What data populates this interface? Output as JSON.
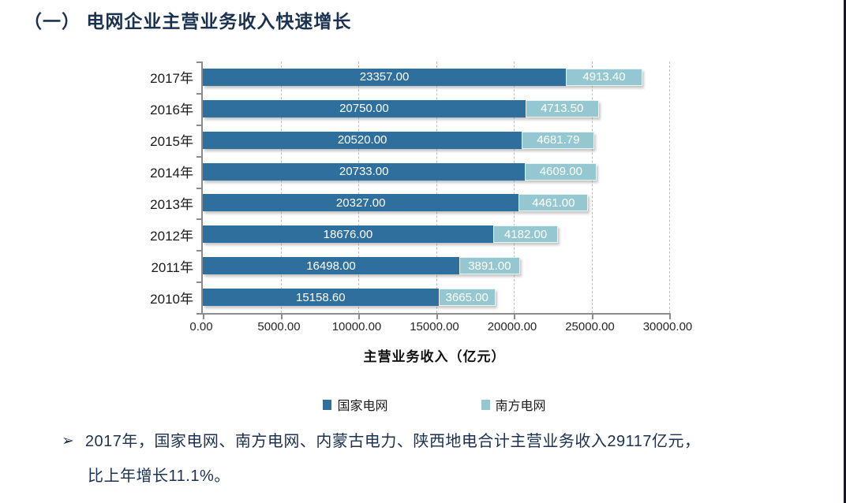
{
  "page": {
    "title": "（一）  电网企业主营业务收入快速增长",
    "note": {
      "bullet": "➢",
      "line1": "2017年，国家电网、南方电网、内蒙古电力、陕西地电合计主营业务收入29117亿元，",
      "line2": "比上年增长11.1%。"
    }
  },
  "chart_data": {
    "type": "bar",
    "orientation": "horizontal",
    "stacked": true,
    "title": "电网企业主营业务收入快速增长",
    "categories": [
      "2017年",
      "2016年",
      "2015年",
      "2014年",
      "2013年",
      "2012年",
      "2011年",
      "2010年"
    ],
    "series": [
      {
        "name": "国家电网",
        "color": "#2e6f9e",
        "values": [
          23357.0,
          20750.0,
          20520.0,
          20733.0,
          20327.0,
          18676.0,
          16498.0,
          15158.6
        ],
        "labels": [
          "23357.00",
          "20750.00",
          "20520.00",
          "20733.00",
          "20327.00",
          "18676.00",
          "16498.00",
          "15158.60"
        ]
      },
      {
        "name": "南方电网",
        "color": "#94c7d0",
        "values": [
          4913.4,
          4713.5,
          4681.79,
          4609.0,
          4461.0,
          4182.0,
          3891.0,
          3665.0
        ],
        "labels": [
          "4913.40",
          "4713.50",
          "4681.79",
          "4609.00",
          "4461.00",
          "4182.00",
          "3891.00",
          "3665.00"
        ]
      }
    ],
    "xlabel": "主营业务收入（亿元）",
    "ylabel": "",
    "xlim": [
      0,
      30000
    ],
    "xticks": [
      0,
      5000,
      10000,
      15000,
      20000,
      25000,
      30000
    ],
    "xtick_labels": [
      "0.00",
      "5000.00",
      "10000.00",
      "15000.00",
      "20000.00",
      "25000.00",
      "30000.00"
    ],
    "grid": "vertical-dashed",
    "legend_position": "bottom",
    "value_labels": "inside-white"
  },
  "colors": {
    "title_text": "#1b3150",
    "note_text": "#1b3150",
    "series_dark": "#2e6f9e",
    "series_light": "#94c7d0",
    "gridline": "#bdbdbd",
    "axis": "#8c8c8c",
    "bar_value_text": "#ffffff"
  }
}
